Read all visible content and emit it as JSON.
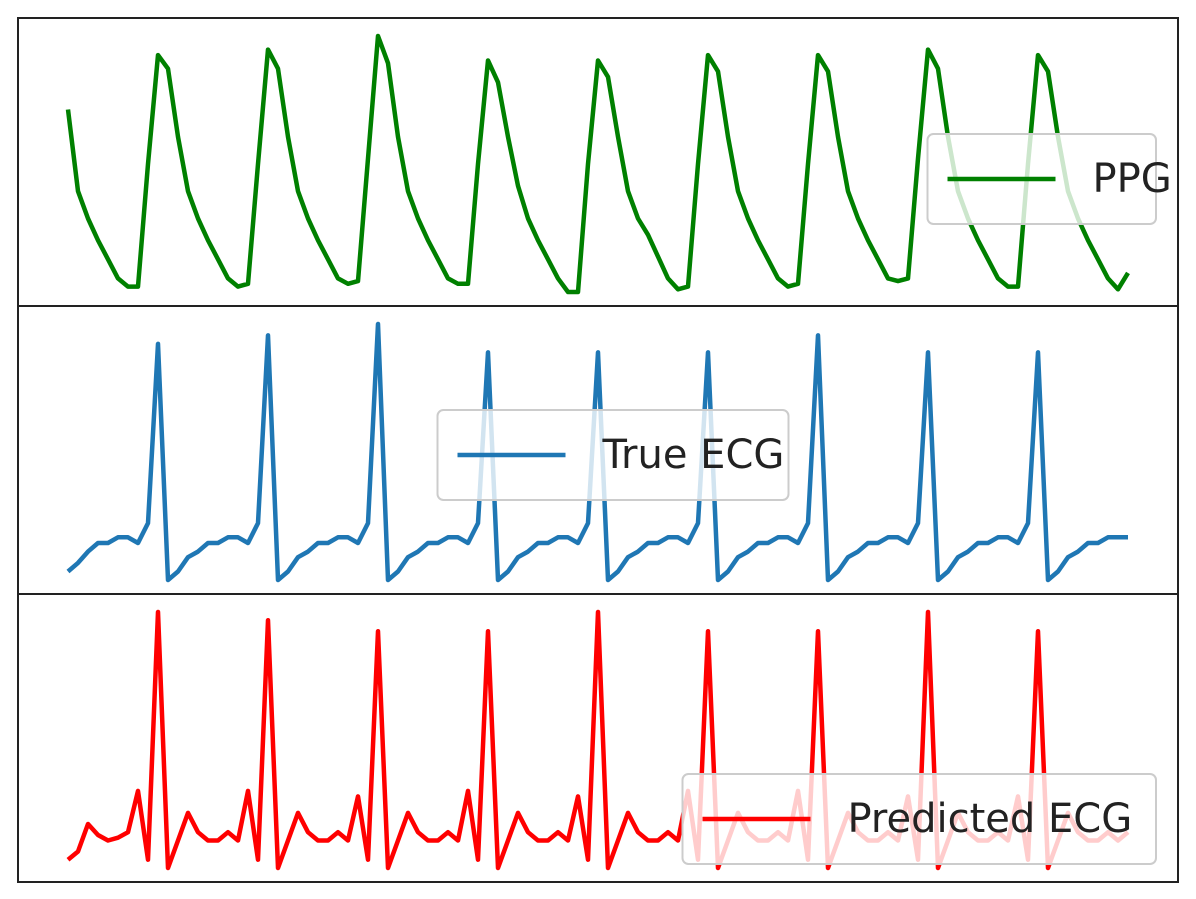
{
  "chart_data": [
    {
      "type": "line",
      "legend": "right",
      "series": [
        {
          "name": "PPG",
          "color": "#008000",
          "values": [
            0.7,
            0.4,
            0.3,
            0.22,
            0.15,
            0.08,
            0.05,
            0.05,
            0.5,
            0.9,
            0.85,
            0.6,
            0.4,
            0.3,
            0.22,
            0.15,
            0.08,
            0.05,
            0.06,
            0.5,
            0.92,
            0.85,
            0.6,
            0.4,
            0.3,
            0.22,
            0.15,
            0.08,
            0.06,
            0.07,
            0.52,
            0.97,
            0.87,
            0.6,
            0.4,
            0.3,
            0.22,
            0.15,
            0.08,
            0.06,
            0.06,
            0.5,
            0.88,
            0.8,
            0.6,
            0.42,
            0.3,
            0.22,
            0.15,
            0.08,
            0.03,
            0.03,
            0.5,
            0.88,
            0.82,
            0.6,
            0.4,
            0.3,
            0.24,
            0.16,
            0.08,
            0.04,
            0.05,
            0.5,
            0.9,
            0.84,
            0.6,
            0.4,
            0.3,
            0.22,
            0.15,
            0.08,
            0.05,
            0.06,
            0.5,
            0.9,
            0.84,
            0.6,
            0.4,
            0.3,
            0.22,
            0.15,
            0.08,
            0.07,
            0.08,
            0.52,
            0.92,
            0.85,
            0.6,
            0.4,
            0.3,
            0.22,
            0.15,
            0.08,
            0.05,
            0.05,
            0.5,
            0.9,
            0.84,
            0.6,
            0.4,
            0.3,
            0.22,
            0.15,
            0.08,
            0.04,
            0.1
          ]
        }
      ]
    },
    {
      "type": "line",
      "legend": "center",
      "series": [
        {
          "name": "True ECG",
          "color": "#1f77b4",
          "values": [
            0.05,
            0.08,
            0.12,
            0.15,
            0.15,
            0.17,
            0.17,
            0.15,
            0.22,
            0.85,
            0.02,
            0.05,
            0.1,
            0.12,
            0.15,
            0.15,
            0.17,
            0.17,
            0.15,
            0.22,
            0.88,
            0.02,
            0.05,
            0.1,
            0.12,
            0.15,
            0.15,
            0.17,
            0.17,
            0.15,
            0.22,
            0.92,
            0.02,
            0.05,
            0.1,
            0.12,
            0.15,
            0.15,
            0.17,
            0.17,
            0.15,
            0.22,
            0.82,
            0.02,
            0.05,
            0.1,
            0.12,
            0.15,
            0.15,
            0.17,
            0.17,
            0.15,
            0.22,
            0.82,
            0.02,
            0.05,
            0.1,
            0.12,
            0.15,
            0.15,
            0.17,
            0.17,
            0.15,
            0.22,
            0.82,
            0.02,
            0.05,
            0.1,
            0.12,
            0.15,
            0.15,
            0.17,
            0.17,
            0.15,
            0.22,
            0.88,
            0.02,
            0.05,
            0.1,
            0.12,
            0.15,
            0.15,
            0.17,
            0.17,
            0.15,
            0.22,
            0.82,
            0.02,
            0.05,
            0.1,
            0.12,
            0.15,
            0.15,
            0.17,
            0.17,
            0.15,
            0.22,
            0.82,
            0.02,
            0.05,
            0.1,
            0.12,
            0.15,
            0.15,
            0.17,
            0.17,
            0.17
          ]
        }
      ]
    },
    {
      "type": "line",
      "legend": "lower right",
      "series": [
        {
          "name": "Predicted ECG",
          "color": "#ff0000",
          "values": [
            0.05,
            0.08,
            0.18,
            0.14,
            0.12,
            0.13,
            0.15,
            0.3,
            0.05,
            0.95,
            0.02,
            0.12,
            0.22,
            0.15,
            0.12,
            0.12,
            0.15,
            0.12,
            0.3,
            0.05,
            0.92,
            0.02,
            0.12,
            0.22,
            0.15,
            0.12,
            0.12,
            0.15,
            0.12,
            0.28,
            0.05,
            0.88,
            0.02,
            0.12,
            0.22,
            0.15,
            0.12,
            0.12,
            0.15,
            0.12,
            0.3,
            0.05,
            0.88,
            0.02,
            0.12,
            0.22,
            0.15,
            0.12,
            0.12,
            0.15,
            0.12,
            0.28,
            0.05,
            0.95,
            0.02,
            0.12,
            0.22,
            0.15,
            0.12,
            0.12,
            0.15,
            0.12,
            0.3,
            0.05,
            0.88,
            0.02,
            0.12,
            0.22,
            0.15,
            0.12,
            0.12,
            0.15,
            0.12,
            0.3,
            0.05,
            0.88,
            0.02,
            0.12,
            0.22,
            0.15,
            0.12,
            0.12,
            0.15,
            0.12,
            0.28,
            0.05,
            0.95,
            0.02,
            0.12,
            0.22,
            0.15,
            0.12,
            0.12,
            0.15,
            0.12,
            0.28,
            0.05,
            0.88,
            0.02,
            0.12,
            0.22,
            0.15,
            0.12,
            0.12,
            0.15,
            0.12,
            0.15
          ]
        }
      ]
    }
  ]
}
